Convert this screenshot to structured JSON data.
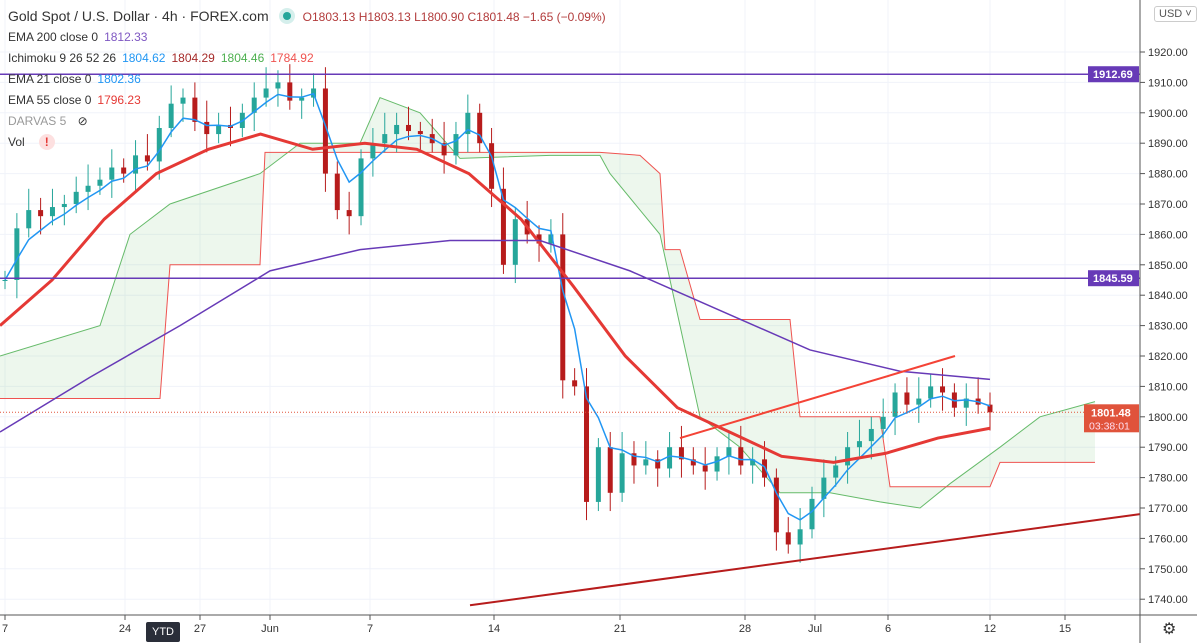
{
  "header": {
    "title": "Gold Spot / U.S. Dollar · 4h · FOREX.com",
    "open": "O1803.13",
    "high": "H1803.13",
    "low": "L1800.90",
    "close": "C1801.48",
    "change": "−1.65 (−0.09%)"
  },
  "indicators": [
    {
      "label": "EMA 200 close 0",
      "values": [
        "1812.33"
      ],
      "colors": [
        "#7e57c2"
      ]
    },
    {
      "label": "Ichimoku 9 26 52 26",
      "values": [
        "1804.62",
        "1804.29",
        "1804.46",
        "1784.92"
      ],
      "colors": [
        "#2196f3",
        "#a52a2a",
        "#4caf50",
        "#ef5350"
      ]
    },
    {
      "label": "EMA 21 close 0",
      "values": [
        "1802.36"
      ],
      "colors": [
        "#2196f3"
      ]
    },
    {
      "label": "EMA 55 close 0",
      "values": [
        "1796.23"
      ],
      "colors": [
        "#e53935"
      ]
    },
    {
      "label": "DARVAS 5",
      "values": [],
      "colors": []
    },
    {
      "label": "Vol",
      "values": [],
      "colors": []
    }
  ],
  "controls": {
    "currency": "USD ˅",
    "ytd": "YTD",
    "settings_icon": "gear-icon"
  },
  "chart_data": {
    "type": "candlestick",
    "ylim": [
      1735,
      1930
    ],
    "yticks": [
      1740,
      1750,
      1760,
      1770,
      1780,
      1790,
      1800,
      1810,
      1820,
      1830,
      1840,
      1850,
      1860,
      1870,
      1880,
      1890,
      1900,
      1910,
      1920
    ],
    "xticks": [
      "7",
      "24",
      "27",
      "Jun",
      "7",
      "14",
      "21",
      "28",
      "Jul",
      "6",
      "12",
      "15"
    ],
    "horizontal_lines": [
      {
        "value": 1912.69,
        "label": "1912.69",
        "color": "#673ab7"
      },
      {
        "value": 1845.59,
        "label": "1845.59",
        "color": "#673ab7"
      }
    ],
    "last_price": {
      "value": 1801.48,
      "label": "1801.48",
      "countdown": "03:38:01",
      "color": "#e0533b"
    },
    "closes": [
      1845,
      1862,
      1868,
      1866,
      1869,
      1870,
      1874,
      1876,
      1878,
      1882,
      1880,
      1886,
      1884,
      1895,
      1903,
      1905,
      1897,
      1893,
      1896,
      1895,
      1900,
      1905,
      1908,
      1910,
      1904,
      1905,
      1908,
      1880,
      1868,
      1866,
      1885,
      1890,
      1893,
      1896,
      1894,
      1893,
      1890,
      1886,
      1893,
      1900,
      1890,
      1875,
      1850,
      1865,
      1860,
      1857,
      1860,
      1812,
      1810,
      1772,
      1790,
      1775,
      1788,
      1784,
      1786,
      1783,
      1790,
      1786,
      1784,
      1782,
      1787,
      1790,
      1784,
      1786,
      1780,
      1762,
      1758,
      1763,
      1773,
      1780,
      1784,
      1790,
      1792,
      1796,
      1800,
      1808,
      1804,
      1806,
      1810,
      1808,
      1803,
      1806,
      1804,
      1801.48
    ],
    "ema200": [
      1795,
      1813,
      1830,
      1848,
      1855,
      1858,
      1858,
      1848,
      1835,
      1822,
      1815,
      1812.33
    ],
    "ema55": [
      1830,
      1845,
      1865,
      1880,
      1888,
      1893,
      1888,
      1890,
      1888,
      1880,
      1865,
      1843,
      1820,
      1803,
      1795,
      1787,
      1785,
      1788,
      1793,
      1796.23
    ],
    "colors": {
      "up": "#26a69a",
      "down": "#b71c1c",
      "ema21": "#2196f3",
      "ema55": "#e53935",
      "ema200": "#673ab7"
    }
  }
}
